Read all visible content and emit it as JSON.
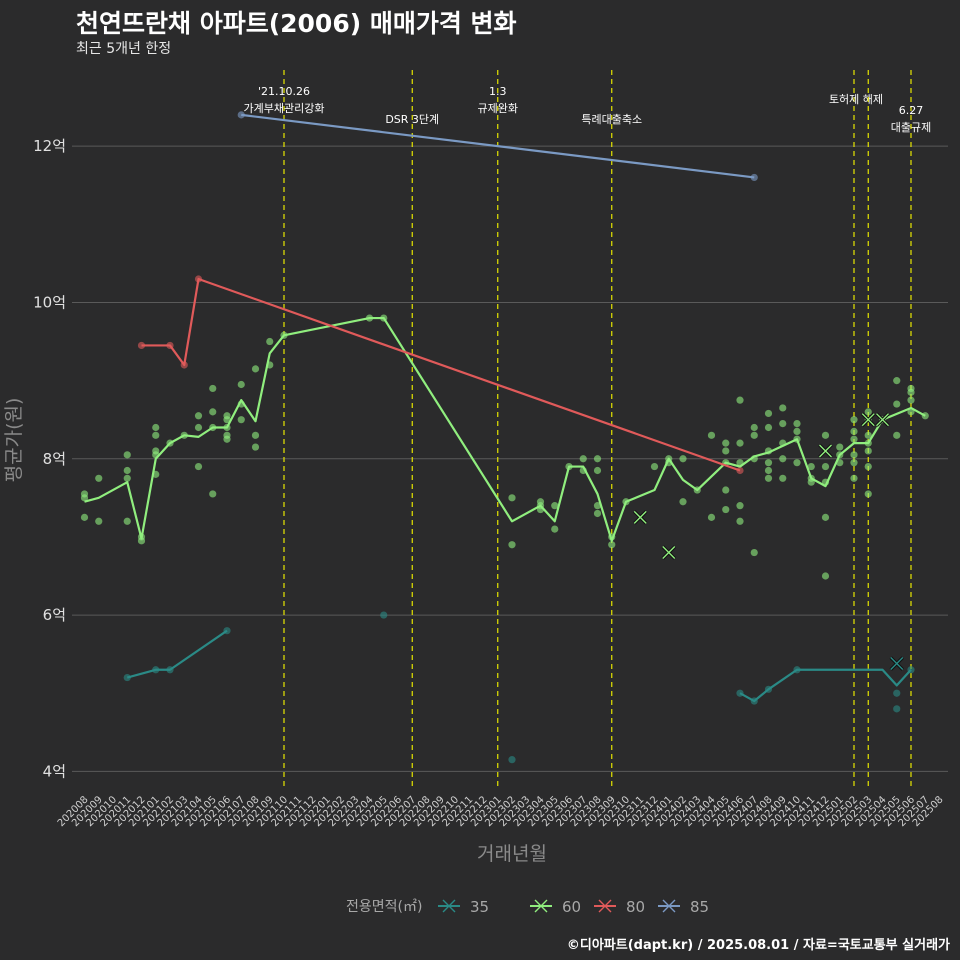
{
  "title": "천연뜨란채 아파트(2006) 매매가격 변화",
  "subtitle": "최근 5개년 한정",
  "caption": "©디아파트(dapt.kr) / 2025.08.01 / 자료=국토교통부 실거래가",
  "chart_data": {
    "type": "line",
    "xlabel": "거래년월",
    "ylabel": "평균가(원)",
    "ylim": [
      3.8,
      13.0
    ],
    "y_ticks": [
      {
        "value": 4,
        "label": "4억"
      },
      {
        "value": 6,
        "label": "6억"
      },
      {
        "value": 8,
        "label": "8억"
      },
      {
        "value": 10,
        "label": "10억"
      },
      {
        "value": 12,
        "label": "12억"
      }
    ],
    "months": [
      "202008",
      "202009",
      "202010",
      "202011",
      "202012",
      "202101",
      "202102",
      "202103",
      "202104",
      "202105",
      "202106",
      "202107",
      "202108",
      "202109",
      "202110",
      "202111",
      "202112",
      "202201",
      "202202",
      "202203",
      "202204",
      "202205",
      "202206",
      "202207",
      "202208",
      "202209",
      "202210",
      "202211",
      "202212",
      "202301",
      "202302",
      "202303",
      "202304",
      "202305",
      "202306",
      "202307",
      "202308",
      "202309",
      "202310",
      "202311",
      "202312",
      "202401",
      "202402",
      "202403",
      "202404",
      "202405",
      "202406",
      "202407",
      "202408",
      "202409",
      "202410",
      "202411",
      "202412",
      "202501",
      "202502",
      "202503",
      "202504",
      "202505",
      "202506",
      "202507",
      "202508"
    ],
    "annotations": [
      {
        "month": "202110",
        "lines": [
          "'21.10.26",
          "가계부채관리강화"
        ]
      },
      {
        "month": "202207",
        "lines": [
          "DSR 3단계"
        ]
      },
      {
        "month": "202301",
        "lines": [
          "1.3",
          "규제완화"
        ]
      },
      {
        "month": "202309",
        "lines": [
          "특례대출축소"
        ]
      },
      {
        "month": "202502",
        "lines": [
          "토허제 해제"
        ]
      },
      {
        "month": "202503",
        "lines": [
          ""
        ]
      },
      {
        "month": "202506",
        "lines": [
          "6.27",
          "대출규제"
        ]
      }
    ],
    "legend_title": "전용면적(㎡)",
    "series": [
      {
        "name": "35",
        "color": "#2a8a86",
        "line": [
          [
            "202011",
            5.2
          ],
          [
            "202101",
            5.3
          ],
          [
            "202102",
            5.3
          ],
          [
            "202106",
            5.8
          ],
          null,
          [
            "202406",
            5.0
          ],
          [
            "202407",
            4.9
          ],
          [
            "202408",
            5.05
          ],
          [
            "202410",
            5.3
          ],
          [
            "202503",
            5.3
          ],
          [
            "202504",
            5.3
          ],
          [
            "202505",
            5.1
          ],
          [
            "202506",
            5.3
          ]
        ],
        "points": [
          [
            "202011",
            5.2
          ],
          [
            "202101",
            5.3
          ],
          [
            "202102",
            5.3
          ],
          [
            "202106",
            5.8
          ],
          [
            "202205",
            6.0
          ],
          [
            "202302",
            4.15
          ],
          [
            "202406",
            5.0
          ],
          [
            "202407",
            4.9
          ],
          [
            "202408",
            5.05
          ],
          [
            "202410",
            5.3
          ],
          [
            "202505",
            5.0
          ],
          [
            "202505",
            4.8
          ],
          [
            "202506",
            5.3
          ]
        ],
        "crosses": [
          [
            "202505",
            5.38
          ]
        ]
      },
      {
        "name": "60",
        "color": "#90ee7e",
        "line": [
          [
            "202008",
            7.45
          ],
          [
            "202009",
            7.5
          ],
          [
            "202011",
            7.7
          ],
          [
            "202012",
            6.98
          ],
          [
            "202101",
            8.0
          ],
          [
            "202102",
            8.2
          ],
          [
            "202103",
            8.3
          ],
          [
            "202104",
            8.28
          ],
          [
            "202105",
            8.4
          ],
          [
            "202106",
            8.4
          ],
          [
            "202107",
            8.75
          ],
          [
            "202108",
            8.48
          ],
          [
            "202109",
            9.35
          ],
          [
            "202110",
            9.58
          ],
          [
            "202204",
            9.8
          ],
          [
            "202205",
            9.8
          ],
          [
            "202302",
            7.2
          ],
          [
            "202304",
            7.4
          ],
          [
            "202305",
            7.2
          ],
          [
            "202306",
            7.9
          ],
          [
            "202307",
            7.9
          ],
          [
            "202308",
            7.55
          ],
          [
            "202309",
            6.95
          ],
          [
            "202310",
            7.45
          ],
          [
            "202312",
            7.6
          ],
          [
            "202401",
            8.0
          ],
          [
            "202402",
            7.73
          ],
          [
            "202403",
            7.6
          ],
          [
            "202405",
            7.95
          ],
          [
            "202406",
            7.9
          ],
          [
            "202407",
            8.03
          ],
          [
            "202408",
            8.08
          ],
          [
            "202410",
            8.25
          ],
          [
            "202411",
            7.75
          ],
          [
            "202412",
            7.65
          ],
          [
            "202501",
            8.05
          ],
          [
            "202502",
            8.2
          ],
          [
            "202503",
            8.2
          ],
          [
            "202504",
            8.5
          ],
          [
            "202506",
            8.65
          ],
          [
            "202507",
            8.55
          ]
        ],
        "points": [
          [
            "202008",
            7.55
          ],
          [
            "202008",
            7.5
          ],
          [
            "202008",
            7.25
          ],
          [
            "202009",
            7.75
          ],
          [
            "202009",
            7.2
          ],
          [
            "202011",
            8.05
          ],
          [
            "202011",
            7.85
          ],
          [
            "202011",
            7.75
          ],
          [
            "202011",
            7.2
          ],
          [
            "202012",
            6.95
          ],
          [
            "202012",
            7.0
          ],
          [
            "202101",
            8.4
          ],
          [
            "202101",
            8.3
          ],
          [
            "202101",
            8.1
          ],
          [
            "202101",
            8.05
          ],
          [
            "202101",
            7.8
          ],
          [
            "202102",
            8.2
          ],
          [
            "202103",
            8.3
          ],
          [
            "202104",
            8.55
          ],
          [
            "202104",
            8.4
          ],
          [
            "202104",
            7.9
          ],
          [
            "202105",
            8.9
          ],
          [
            "202105",
            8.6
          ],
          [
            "202105",
            8.4
          ],
          [
            "202105",
            7.55
          ],
          [
            "202106",
            8.55
          ],
          [
            "202106",
            8.5
          ],
          [
            "202106",
            8.4
          ],
          [
            "202106",
            8.3
          ],
          [
            "202106",
            8.25
          ],
          [
            "202107",
            8.95
          ],
          [
            "202107",
            8.7
          ],
          [
            "202107",
            8.5
          ],
          [
            "202108",
            9.15
          ],
          [
            "202108",
            8.3
          ],
          [
            "202108",
            8.15
          ],
          [
            "202109",
            9.5
          ],
          [
            "202109",
            9.2
          ],
          [
            "202110",
            9.58
          ],
          [
            "202204",
            9.8
          ],
          [
            "202205",
            9.8
          ],
          [
            "202302",
            7.5
          ],
          [
            "202302",
            6.9
          ],
          [
            "202304",
            7.45
          ],
          [
            "202304",
            7.4
          ],
          [
            "202304",
            7.35
          ],
          [
            "202305",
            7.4
          ],
          [
            "202305",
            7.1
          ],
          [
            "202306",
            7.9
          ],
          [
            "202307",
            8.0
          ],
          [
            "202307",
            7.85
          ],
          [
            "202308",
            8.0
          ],
          [
            "202308",
            7.85
          ],
          [
            "202308",
            7.4
          ],
          [
            "202308",
            7.3
          ],
          [
            "202309",
            6.9
          ],
          [
            "202309",
            7.0
          ],
          [
            "202310",
            7.45
          ],
          [
            "202312",
            7.9
          ],
          [
            "202401",
            8.0
          ],
          [
            "202401",
            7.95
          ],
          [
            "202402",
            8.0
          ],
          [
            "202402",
            7.45
          ],
          [
            "202403",
            7.6
          ],
          [
            "202404",
            8.3
          ],
          [
            "202404",
            7.25
          ],
          [
            "202405",
            8.2
          ],
          [
            "202405",
            8.1
          ],
          [
            "202405",
            7.95
          ],
          [
            "202405",
            7.6
          ],
          [
            "202405",
            7.35
          ],
          [
            "202406",
            8.75
          ],
          [
            "202406",
            8.2
          ],
          [
            "202406",
            7.95
          ],
          [
            "202406",
            7.4
          ],
          [
            "202406",
            7.2
          ],
          [
            "202407",
            8.4
          ],
          [
            "202407",
            8.3
          ],
          [
            "202407",
            8.0
          ],
          [
            "202407",
            6.8
          ],
          [
            "202408",
            8.58
          ],
          [
            "202408",
            8.4
          ],
          [
            "202408",
            8.1
          ],
          [
            "202408",
            7.95
          ],
          [
            "202408",
            7.85
          ],
          [
            "202408",
            7.75
          ],
          [
            "202409",
            8.65
          ],
          [
            "202409",
            8.45
          ],
          [
            "202409",
            8.2
          ],
          [
            "202409",
            8.0
          ],
          [
            "202409",
            7.75
          ],
          [
            "202410",
            8.45
          ],
          [
            "202410",
            8.35
          ],
          [
            "202410",
            8.25
          ],
          [
            "202410",
            7.95
          ],
          [
            "202411",
            7.9
          ],
          [
            "202411",
            7.75
          ],
          [
            "202411",
            7.7
          ],
          [
            "202412",
            8.3
          ],
          [
            "202412",
            7.9
          ],
          [
            "202412",
            7.7
          ],
          [
            "202412",
            7.25
          ],
          [
            "202412",
            6.5
          ],
          [
            "202501",
            8.15
          ],
          [
            "202501",
            8.05
          ],
          [
            "202501",
            7.95
          ],
          [
            "202502",
            8.5
          ],
          [
            "202502",
            8.35
          ],
          [
            "202502",
            8.25
          ],
          [
            "202502",
            8.05
          ],
          [
            "202502",
            7.95
          ],
          [
            "202502",
            7.75
          ],
          [
            "202503",
            8.6
          ],
          [
            "202503",
            8.5
          ],
          [
            "202503",
            8.3
          ],
          [
            "202503",
            8.2
          ],
          [
            "202503",
            8.1
          ],
          [
            "202503",
            7.9
          ],
          [
            "202503",
            7.55
          ],
          [
            "202504",
            8.5
          ],
          [
            "202505",
            9.0
          ],
          [
            "202505",
            8.7
          ],
          [
            "202505",
            8.3
          ],
          [
            "202506",
            8.9
          ],
          [
            "202506",
            8.85
          ],
          [
            "202506",
            8.75
          ],
          [
            "202506",
            8.6
          ],
          [
            "202507",
            8.55
          ]
        ],
        "crosses": [
          [
            "202311",
            7.25
          ],
          [
            "202401",
            6.8
          ],
          [
            "202412",
            8.1
          ],
          [
            "202503",
            8.5
          ],
          [
            "202504",
            8.5
          ]
        ]
      },
      {
        "name": "80",
        "color": "#e05a5a",
        "line": [
          [
            "202012",
            9.45
          ],
          [
            "202102",
            9.45
          ],
          [
            "202103",
            9.2
          ],
          [
            "202104",
            10.3
          ],
          [
            "202406",
            7.85
          ]
        ],
        "points": [
          [
            "202012",
            9.45
          ],
          [
            "202102",
            9.45
          ],
          [
            "202103",
            9.2
          ],
          [
            "202104",
            10.3
          ],
          [
            "202406",
            7.85
          ]
        ],
        "crosses": []
      },
      {
        "name": "85",
        "color": "#7b9ac4",
        "line": [
          [
            "202107",
            12.4
          ],
          [
            "202407",
            11.6
          ]
        ],
        "points": [
          [
            "202107",
            12.4
          ],
          [
            "202407",
            11.6
          ]
        ],
        "crosses": []
      }
    ]
  }
}
